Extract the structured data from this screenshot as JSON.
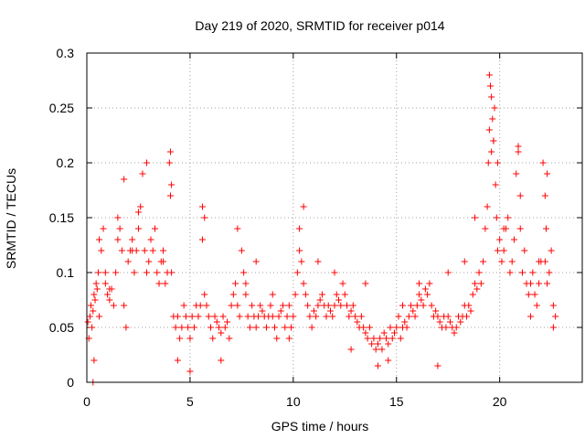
{
  "chart_data": {
    "type": "scatter",
    "title": "Day 219 of 2020, SRMTID for receiver p014",
    "xlabel": "GPS time / hours",
    "ylabel": "SRMTID / TECUs",
    "xlim": [
      0,
      24
    ],
    "ylim": [
      0,
      0.3
    ],
    "xticks": [
      0,
      5,
      10,
      15,
      20
    ],
    "xtick_labels": [
      "0",
      "5",
      "10",
      "15",
      "20"
    ],
    "yticks": [
      0,
      0.05,
      0.1,
      0.15,
      0.2,
      0.25,
      0.3
    ],
    "ytick_labels": [
      "0",
      "0.05",
      "0.1",
      "0.15",
      "0.2",
      "0.25",
      "0.3"
    ],
    "grid": true,
    "marker": "+",
    "series": [
      {
        "name": "SRMTID",
        "color": "#ff0000",
        "x": [
          0.05,
          0.1,
          0.15,
          0.2,
          0.25,
          0.3,
          0.35,
          0.4,
          0.45,
          0.5,
          0.55,
          0.6,
          0.7,
          0.8,
          0.9,
          1.0,
          1.1,
          1.2,
          1.3,
          1.4,
          1.5,
          1.6,
          1.7,
          1.8,
          1.9,
          2.0,
          2.1,
          2.2,
          2.3,
          2.4,
          2.5,
          2.6,
          2.7,
          2.8,
          2.9,
          3.0,
          3.1,
          3.2,
          3.3,
          3.4,
          3.5,
          3.6,
          3.7,
          3.8,
          3.9,
          4.0,
          4.05,
          4.1,
          4.2,
          4.3,
          4.4,
          4.5,
          4.6,
          4.7,
          4.8,
          4.9,
          5.0,
          5.1,
          5.2,
          5.3,
          5.4,
          5.5,
          5.6,
          5.7,
          5.8,
          5.9,
          6.0,
          6.1,
          6.2,
          6.3,
          6.4,
          6.5,
          6.6,
          6.7,
          6.8,
          6.9,
          7.0,
          7.1,
          7.2,
          7.3,
          7.4,
          7.5,
          7.6,
          7.7,
          7.8,
          7.9,
          8.0,
          8.1,
          8.2,
          8.3,
          8.4,
          8.5,
          8.6,
          8.7,
          8.8,
          8.9,
          9.0,
          9.1,
          9.2,
          9.3,
          9.4,
          9.5,
          9.6,
          9.7,
          9.8,
          9.9,
          10.0,
          10.1,
          10.2,
          10.3,
          10.4,
          10.5,
          10.6,
          10.7,
          10.8,
          10.9,
          11.0,
          11.1,
          11.2,
          11.3,
          11.4,
          11.5,
          11.6,
          11.7,
          11.8,
          11.9,
          12.0,
          12.1,
          12.2,
          12.3,
          12.4,
          12.5,
          12.6,
          12.7,
          12.8,
          12.9,
          13.0,
          13.1,
          13.2,
          13.3,
          13.4,
          13.5,
          13.6,
          13.7,
          13.8,
          13.9,
          14.0,
          14.1,
          14.2,
          14.3,
          14.4,
          14.5,
          14.6,
          14.7,
          14.8,
          14.9,
          15.0,
          15.1,
          15.2,
          15.3,
          15.4,
          15.5,
          15.6,
          15.7,
          15.8,
          15.9,
          16.0,
          16.1,
          16.2,
          16.3,
          16.4,
          16.5,
          16.6,
          16.7,
          16.8,
          16.9,
          17.0,
          17.1,
          17.2,
          17.3,
          17.4,
          17.5,
          17.6,
          17.7,
          17.8,
          17.9,
          18.0,
          18.1,
          18.2,
          18.3,
          18.4,
          18.5,
          18.6,
          18.7,
          18.8,
          18.9,
          19.0,
          19.1,
          19.2,
          19.3,
          19.4,
          19.45,
          19.5,
          19.55,
          19.6,
          19.65,
          19.7,
          19.75,
          19.8,
          19.85,
          19.9,
          20.0,
          20.1,
          20.2,
          20.3,
          20.4,
          20.5,
          20.6,
          20.7,
          20.8,
          20.9,
          21.0,
          21.1,
          21.2,
          21.3,
          21.4,
          21.5,
          21.6,
          21.7,
          21.8,
          21.9,
          22.0,
          22.1,
          22.2,
          22.25,
          22.3,
          22.4,
          22.5,
          22.6,
          22.7,
          0.3,
          0.35,
          0.6,
          0.9,
          1.1,
          1.5,
          1.8,
          2.2,
          2.5,
          2.9,
          3.3,
          3.7,
          4.05,
          4.1,
          4.4,
          5.0,
          5.6,
          5.7,
          6.5,
          7.3,
          7.7,
          8.2,
          9.0,
          9.8,
          10.3,
          10.5,
          11.2,
          12.0,
          12.8,
          13.5,
          14.1,
          14.6,
          15.3,
          16.1,
          17.0,
          17.5,
          18.3,
          18.8,
          19.5,
          19.6,
          19.7,
          19.9,
          20.2,
          20.9,
          21.0,
          21.5,
          21.9,
          22.2,
          22.3,
          22.6
        ],
        "y": [
          0.055,
          0.04,
          0.06,
          0.07,
          0.05,
          0.065,
          0.08,
          0.075,
          0.09,
          0.085,
          0.1,
          0.13,
          0.12,
          0.14,
          0.09,
          0.08,
          0.075,
          0.085,
          0.07,
          0.1,
          0.15,
          0.14,
          0.12,
          0.07,
          0.05,
          0.11,
          0.12,
          0.13,
          0.1,
          0.12,
          0.14,
          0.16,
          0.19,
          0.12,
          0.1,
          0.11,
          0.13,
          0.12,
          0.14,
          0.1,
          0.09,
          0.11,
          0.12,
          0.09,
          0.1,
          0.2,
          0.17,
          0.1,
          0.06,
          0.05,
          0.06,
          0.04,
          0.05,
          0.07,
          0.06,
          0.05,
          0.04,
          0.06,
          0.05,
          0.07,
          0.06,
          0.07,
          0.13,
          0.15,
          0.07,
          0.06,
          0.05,
          0.04,
          0.06,
          0.055,
          0.05,
          0.045,
          0.06,
          0.05,
          0.055,
          0.04,
          0.07,
          0.08,
          0.09,
          0.07,
          0.06,
          0.12,
          0.1,
          0.08,
          0.06,
          0.05,
          0.07,
          0.06,
          0.05,
          0.06,
          0.07,
          0.065,
          0.06,
          0.05,
          0.06,
          0.07,
          0.06,
          0.05,
          0.04,
          0.06,
          0.065,
          0.07,
          0.05,
          0.06,
          0.04,
          0.05,
          0.06,
          0.08,
          0.1,
          0.14,
          0.11,
          0.09,
          0.08,
          0.07,
          0.06,
          0.05,
          0.065,
          0.06,
          0.07,
          0.075,
          0.08,
          0.07,
          0.06,
          0.07,
          0.065,
          0.06,
          0.07,
          0.08,
          0.075,
          0.07,
          0.09,
          0.08,
          0.07,
          0.06,
          0.065,
          0.07,
          0.06,
          0.055,
          0.05,
          0.06,
          0.05,
          0.045,
          0.04,
          0.05,
          0.035,
          0.04,
          0.03,
          0.035,
          0.04,
          0.03,
          0.045,
          0.04,
          0.035,
          0.05,
          0.04,
          0.045,
          0.05,
          0.06,
          0.04,
          0.05,
          0.055,
          0.05,
          0.06,
          0.07,
          0.065,
          0.06,
          0.07,
          0.08,
          0.075,
          0.07,
          0.085,
          0.08,
          0.09,
          0.07,
          0.06,
          0.065,
          0.06,
          0.055,
          0.05,
          0.06,
          0.05,
          0.06,
          0.055,
          0.05,
          0.045,
          0.05,
          0.06,
          0.055,
          0.06,
          0.07,
          0.06,
          0.07,
          0.065,
          0.08,
          0.09,
          0.085,
          0.1,
          0.09,
          0.11,
          0.14,
          0.16,
          0.2,
          0.23,
          0.27,
          0.21,
          0.24,
          0.22,
          0.25,
          0.18,
          0.15,
          0.12,
          0.13,
          0.11,
          0.12,
          0.14,
          0.15,
          0.1,
          0.11,
          0.13,
          0.19,
          0.21,
          0.17,
          0.1,
          0.12,
          0.09,
          0.08,
          0.09,
          0.1,
          0.08,
          0.07,
          0.09,
          0.11,
          0.2,
          0.17,
          0.14,
          0.09,
          0.1,
          0.12,
          0.07,
          0.06,
          0.0,
          0.02,
          0.06,
          0.1,
          0.085,
          0.13,
          0.185,
          0.12,
          0.155,
          0.2,
          0.14,
          0.11,
          0.21,
          0.18,
          0.02,
          0.01,
          0.16,
          0.08,
          0.02,
          0.14,
          0.09,
          0.11,
          0.08,
          0.07,
          0.12,
          0.16,
          0.11,
          0.1,
          0.03,
          0.09,
          0.015,
          0.02,
          0.07,
          0.09,
          0.015,
          0.1,
          0.11,
          0.15,
          0.28,
          0.26,
          0.22,
          0.2,
          0.14,
          0.215,
          0.14,
          0.06,
          0.11,
          0.11,
          0.19,
          0.05
        ]
      }
    ]
  }
}
